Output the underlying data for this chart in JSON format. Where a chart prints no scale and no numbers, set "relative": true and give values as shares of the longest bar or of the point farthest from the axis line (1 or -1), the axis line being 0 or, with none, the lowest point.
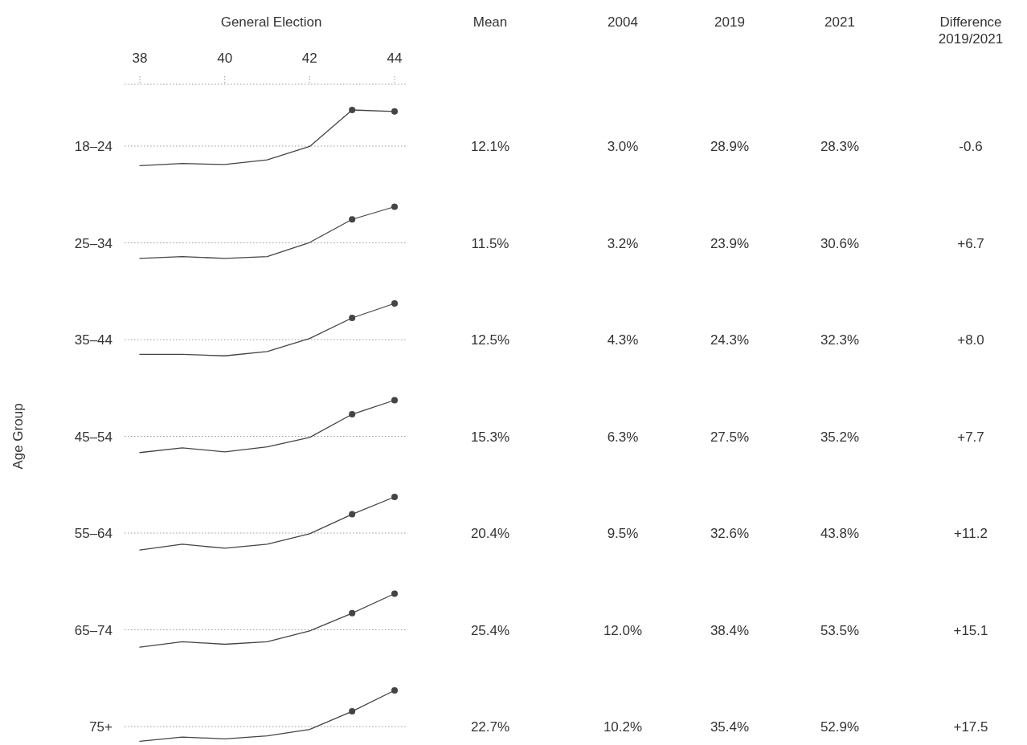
{
  "chart_data": [
    {
      "type": "other",
      "annotations": [
        "Mean",
        "2004",
        "2019",
        "2021",
        "Difference 2019/2021",
        "12.1%",
        "3.0%",
        "28.9%",
        "28.3%",
        "-0.6",
        "11.5%",
        "3.2%",
        "23.9%",
        "30.6%",
        "+6.7",
        "12.5%",
        "4.3%",
        "24.3%",
        "32.3%",
        "+8.0",
        "15.3%",
        "6.3%",
        "27.5%",
        "35.2%",
        "+7.7",
        "20.4%",
        "9.5%",
        "32.6%",
        "43.8%",
        "+11.2",
        "25.4%",
        "12.0%",
        "38.4%",
        "53.5%",
        "+15.1",
        "22.7%",
        "10.2%",
        "35.4%",
        "52.9%",
        "+17.5"
      ]
    },
    {
      "type": "line",
      "title": "18–24",
      "xlabel": "General Election",
      "xlim": [
        38,
        44
      ],
      "xticks": [
        38,
        40,
        42,
        44
      ],
      "tick_labels": "x",
      "relative": true,
      "series": [
        {
          "x": [
            38,
            39,
            40,
            41,
            42,
            43
          ],
          "values": [
            -0.54,
            -0.48,
            -0.51,
            -0.38,
            -0.01,
            1
          ],
          "color": "#444444",
          "marker": "none"
        },
        {
          "x": [
            43,
            44
          ],
          "values": [
            1,
            0.96
          ],
          "color": "#444444",
          "marker": "circle"
        }
      ],
      "ref_lines": [
        {
          "axis": "y",
          "value": 0,
          "color": "#999999",
          "line_style": "dotted"
        }
      ]
    },
    {
      "type": "line",
      "title": "25–34",
      "xlim": [
        38,
        44
      ],
      "tick_labels": false,
      "relative": true,
      "series": [
        {
          "x": [
            38,
            39,
            40,
            41,
            42,
            43
          ],
          "values": [
            -0.43,
            -0.38,
            -0.43,
            -0.38,
            0.01,
            0.65
          ],
          "color": "#444444",
          "marker": "none"
        },
        {
          "x": [
            43,
            44
          ],
          "values": [
            0.65,
            1
          ],
          "color": "#444444",
          "marker": "circle"
        }
      ],
      "ref_lines": [
        {
          "axis": "y",
          "value": 0,
          "color": "#999999",
          "line_style": "dotted"
        }
      ]
    },
    {
      "type": "line",
      "title": "35–44",
      "xlim": [
        38,
        44
      ],
      "tick_labels": false,
      "relative": true,
      "series": [
        {
          "x": [
            38,
            39,
            40,
            41,
            42,
            43
          ],
          "values": [
            -0.41,
            -0.41,
            -0.45,
            -0.33,
            0.03,
            0.6
          ],
          "color": "#444444",
          "marker": "none"
        },
        {
          "x": [
            43,
            44
          ],
          "values": [
            0.6,
            1
          ],
          "color": "#444444",
          "marker": "circle"
        }
      ],
      "ref_lines": [
        {
          "axis": "y",
          "value": 0,
          "color": "#999999",
          "line_style": "dotted"
        }
      ]
    },
    {
      "type": "line",
      "title": "45–54",
      "ylabel": "Age Group",
      "xlim": [
        38,
        44
      ],
      "tick_labels": false,
      "relative": true,
      "series": [
        {
          "x": [
            38,
            39,
            40,
            41,
            42,
            43
          ],
          "values": [
            -0.45,
            -0.32,
            -0.43,
            -0.29,
            -0.03,
            0.61
          ],
          "color": "#444444",
          "marker": "none"
        },
        {
          "x": [
            43,
            44
          ],
          "values": [
            0.61,
            1
          ],
          "color": "#444444",
          "marker": "circle"
        }
      ],
      "ref_lines": [
        {
          "axis": "y",
          "value": 0,
          "color": "#999999",
          "line_style": "dotted"
        }
      ]
    },
    {
      "type": "line",
      "title": "55–64",
      "xlim": [
        38,
        44
      ],
      "tick_labels": false,
      "relative": true,
      "series": [
        {
          "x": [
            38,
            39,
            40,
            41,
            42,
            43
          ],
          "values": [
            -0.47,
            -0.31,
            -0.42,
            -0.31,
            -0.02,
            0.52
          ],
          "color": "#444444",
          "marker": "none"
        },
        {
          "x": [
            43,
            44
          ],
          "values": [
            0.52,
            1
          ],
          "color": "#444444",
          "marker": "circle"
        }
      ],
      "ref_lines": [
        {
          "axis": "y",
          "value": 0,
          "color": "#999999",
          "line_style": "dotted"
        }
      ]
    },
    {
      "type": "line",
      "title": "65–74",
      "xlim": [
        38,
        44
      ],
      "tick_labels": false,
      "relative": true,
      "series": [
        {
          "x": [
            38,
            39,
            40,
            41,
            42,
            43
          ],
          "values": [
            -0.48,
            -0.33,
            -0.4,
            -0.33,
            -0.03,
            0.46
          ],
          "color": "#444444",
          "marker": "none"
        },
        {
          "x": [
            43,
            44
          ],
          "values": [
            0.46,
            1
          ],
          "color": "#444444",
          "marker": "circle"
        }
      ],
      "ref_lines": [
        {
          "axis": "y",
          "value": 0,
          "color": "#999999",
          "line_style": "dotted"
        }
      ]
    },
    {
      "type": "line",
      "title": "75+",
      "xlim": [
        38,
        44
      ],
      "tick_labels": false,
      "relative": true,
      "series": [
        {
          "x": [
            38,
            39,
            40,
            41,
            42,
            43
          ],
          "values": [
            -0.41,
            -0.29,
            -0.34,
            -0.26,
            -0.08,
            0.42
          ],
          "color": "#444444",
          "marker": "none"
        },
        {
          "x": [
            43,
            44
          ],
          "values": [
            0.42,
            1
          ],
          "color": "#444444",
          "marker": "circle"
        }
      ],
      "ref_lines": [
        {
          "axis": "y",
          "value": 0,
          "color": "#999999",
          "line_style": "dotted"
        }
      ]
    }
  ]
}
